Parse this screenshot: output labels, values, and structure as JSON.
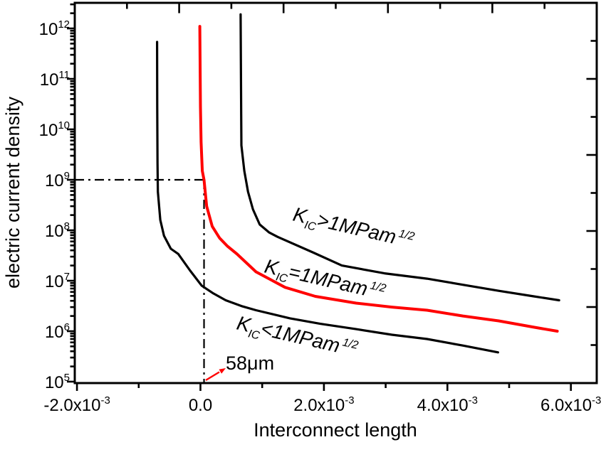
{
  "colors": {
    "axis": "#000000",
    "curve_black": "#000000",
    "curve_red": "#ff0000",
    "annotation_red": "#ff0000",
    "background": "#ffffff"
  },
  "y_axis": {
    "title": "electric current density",
    "scale": "log",
    "tick_labels": [
      {
        "base": "10",
        "exp": "12",
        "decade": 12
      },
      {
        "base": "10",
        "exp": "11",
        "decade": 11
      },
      {
        "base": "10",
        "exp": "10",
        "decade": 10
      },
      {
        "base": "10",
        "exp": "9",
        "decade": 9
      },
      {
        "base": "10",
        "exp": "8",
        "decade": 8
      },
      {
        "base": "10",
        "exp": "7",
        "decade": 7
      },
      {
        "base": "10",
        "exp": "6",
        "decade": 6
      },
      {
        "base": "10",
        "exp": "5",
        "decade": 5
      }
    ]
  },
  "x_axis": {
    "title": "Interconnect length",
    "tick_labels": [
      {
        "mantissa": "-2.0x10",
        "exp": "-3",
        "value": -0.002
      },
      {
        "mantissa": "0.0",
        "exp": "",
        "value": 0
      },
      {
        "mantissa": "2.0x10",
        "exp": "-3",
        "value": 0.002
      },
      {
        "mantissa": "4.0x10",
        "exp": "-3",
        "value": 0.004
      },
      {
        "mantissa": "6.0x10",
        "exp": "-3",
        "value": 0.006
      }
    ],
    "minor_tick_values": [
      -0.001,
      0.001,
      0.003,
      0.005
    ]
  },
  "curve_labels": [
    {
      "k": "K",
      "sub": "IC",
      "mid": ">1MPam",
      "sup": "1/2"
    },
    {
      "k": "K",
      "sub": "IC",
      "mid": "=1MPam",
      "sup": "1/2"
    },
    {
      "k": "K",
      "sub": "IC",
      "mid": "<1MPam",
      "sup": "1/2"
    }
  ],
  "annotation": {
    "label": "58μm"
  },
  "chart_data": {
    "type": "line",
    "title": "",
    "xlabel": "Interconnect length",
    "ylabel": "electric current density",
    "grid": false,
    "legend_position": "none",
    "x_axis": {
      "min": -0.002,
      "max": 0.006,
      "major_ticks": [
        -0.002,
        0,
        0.002,
        0.004,
        0.006
      ],
      "minor_ticks": [
        -0.001,
        0.001,
        0.003,
        0.005
      ]
    },
    "y_axis": {
      "scale": "log",
      "min": 100000.0,
      "max": 1000000000000.0,
      "decades": [
        5,
        6,
        7,
        8,
        9,
        10,
        11,
        12
      ]
    },
    "series": [
      {
        "name": "KIC>1MPam1/2",
        "color": "#000000",
        "x": [
          0.00065,
          0.00066,
          0.000663,
          0.00071,
          0.00077,
          0.00085,
          0.00096,
          0.00111,
          0.00125,
          0.00183,
          0.00229,
          0.00298,
          0.00367,
          0.00425,
          0.00483,
          0.0054,
          0.00581
        ],
        "y": [
          1900000000000.0,
          20000000000.0,
          4800000000.0,
          1500000000.0,
          580000000.0,
          260000000.0,
          130000000.0,
          91000000.0,
          74000000.0,
          36000000.0,
          20000000.0,
          14000000.0,
          11000000.0,
          8300000.0,
          6300000.0,
          4900000.0,
          4100000.0
        ]
      },
      {
        "name": "KIC=1MPam1/2",
        "color": "#ff0000",
        "x": [
          -1e-05,
          0.0,
          1e-05,
          3e-05,
          5.8e-05,
          0.0001,
          0.00019,
          0.00031,
          0.00044,
          0.00059,
          0.0009,
          0.00137,
          0.00186,
          0.00252,
          0.0031,
          0.00367,
          0.00425,
          0.00483,
          0.0054,
          0.00578
        ],
        "y": [
          1100000000000.0,
          28000000000.0,
          5600000000.0,
          1500000000.0,
          1000000000.0,
          300000000.0,
          120000000.0,
          70000000.0,
          48000000.0,
          34000000.0,
          15000000.0,
          7400000.0,
          4900000.0,
          3600000.0,
          3000000.0,
          2600000.0,
          2000000.0,
          1600000.0,
          1200000.0,
          1000000.0
        ]
      },
      {
        "name": "KIC<1MPam1/2",
        "color": "#000000",
        "x": [
          -0.000702,
          -0.0007,
          -0.000695,
          -0.00069,
          -0.00065,
          -0.00059,
          -0.00048,
          -0.00036,
          -0.00017,
          2e-05,
          0.00021,
          0.00041,
          0.00068,
          0.0009,
          0.00145,
          0.00194,
          0.00252,
          0.0031,
          0.00367,
          0.00425,
          0.00482
        ],
        "y": [
          540000000000.0,
          28000000000.0,
          2100000000.0,
          580000000.0,
          160000000.0,
          78000000.0,
          43000000.0,
          34000000.0,
          16000000.0,
          8000000.0,
          5600000.0,
          4100000.0,
          3100000.0,
          2600000.0,
          1800000.0,
          1400000.0,
          1100000.0,
          850000.0,
          700000.0,
          520000.0,
          380000.0
        ]
      }
    ],
    "annotations": {
      "crosshair_x": 5.8e-05,
      "crosshair_y": 1000000000.0,
      "crosshair_label": "58μm"
    }
  }
}
